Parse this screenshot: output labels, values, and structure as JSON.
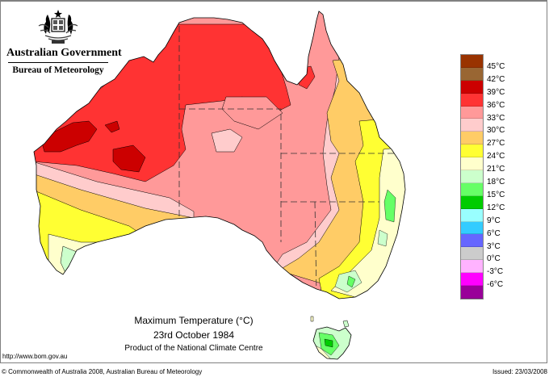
{
  "header": {
    "logo_icon": "coat-of-arms-icon",
    "government": "Australian Government",
    "bureau": "Bureau of Meteorology"
  },
  "map": {
    "title": "Maximum Temperature (°C)",
    "date": "23rd October 1984",
    "product": "Product of the National Climate Centre",
    "region": "Australia incl. Tasmania",
    "state_borders": "dashed"
  },
  "legend": {
    "units": "°C",
    "bands": [
      {
        "label": "45°C",
        "color": "#993300"
      },
      {
        "label": "42°C",
        "color": "#996633"
      },
      {
        "label": "39°C",
        "color": "#cc0000"
      },
      {
        "label": "36°C",
        "color": "#ff3333"
      },
      {
        "label": "33°C",
        "color": "#ff9999"
      },
      {
        "label": "30°C",
        "color": "#ffcccc"
      },
      {
        "label": "27°C",
        "color": "#ffcc66"
      },
      {
        "label": "24°C",
        "color": "#ffff33"
      },
      {
        "label": "21°C",
        "color": "#ffffcc"
      },
      {
        "label": "18°C",
        "color": "#ccffcc"
      },
      {
        "label": "15°C",
        "color": "#66ff66"
      },
      {
        "label": "12°C",
        "color": "#00cc00"
      },
      {
        "label": "9°C",
        "color": "#99ffff"
      },
      {
        "label": "6°C",
        "color": "#33ccff"
      },
      {
        "label": "3°C",
        "color": "#6666ff"
      },
      {
        "label": "0°C",
        "color": "#cccccc"
      },
      {
        "label": "-3°C",
        "color": "#ffb3ff"
      },
      {
        "label": "-6°C",
        "color": "#ff00ff"
      },
      {
        "label": "",
        "color": "#990099"
      }
    ]
  },
  "footer": {
    "url": "http://www.bom.gov.au",
    "copyright": "© Commonwealth of Australia 2008, Australian Bureau of Meteorology",
    "issued": "Issued: 23/03/2008"
  }
}
